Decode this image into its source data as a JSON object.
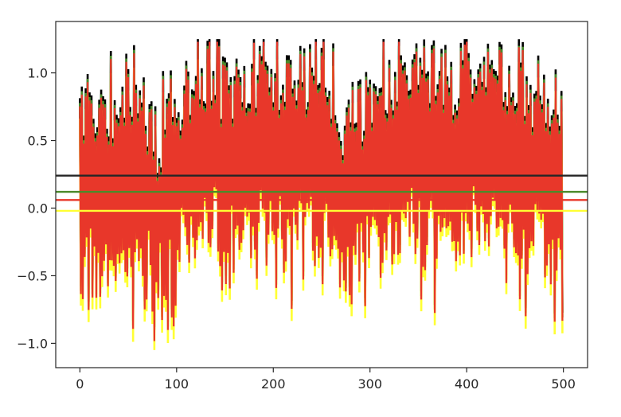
{
  "chart_data": {
    "type": "line",
    "title": "",
    "xlabel": "",
    "ylabel": "",
    "xlim": [
      -25,
      525
    ],
    "ylim": [
      -1.18,
      1.38
    ],
    "grid": false,
    "legend": "none",
    "x_ticks": [
      {
        "value": 0,
        "label": "0"
      },
      {
        "value": 100,
        "label": "100"
      },
      {
        "value": 200,
        "label": "200"
      },
      {
        "value": 300,
        "label": "300"
      },
      {
        "value": 400,
        "label": "400"
      },
      {
        "value": 500,
        "label": "500"
      }
    ],
    "y_ticks": [
      {
        "value": -1.0,
        "label": "−1.0"
      },
      {
        "value": -0.5,
        "label": "−0.5"
      },
      {
        "value": 0.0,
        "label": "0.0"
      },
      {
        "value": 0.5,
        "label": "0.5"
      },
      {
        "value": 1.0,
        "label": "1.0"
      }
    ],
    "n_points": 500,
    "series": [
      {
        "color": "#000000",
        "envelope": {
          "max_high": 1.25,
          "min_low": -0.88,
          "shift": 0.06
        }
      },
      {
        "color": "#4a8a2a",
        "envelope": {
          "max_high": 1.2,
          "min_low": -0.9,
          "shift": 0.025
        }
      },
      {
        "color": "#ffff33",
        "envelope": {
          "max_high": 1.1,
          "min_low": -1.05,
          "shift": -0.06
        }
      },
      {
        "color": "#e8372a",
        "envelope": {
          "max_high": 1.23,
          "min_low": -1.0,
          "shift": 0.0
        }
      }
    ],
    "reference_lines": [
      {
        "color": "#ffff33",
        "y": -0.02
      },
      {
        "color": "#e8372a",
        "y": 0.06
      },
      {
        "color": "#4a8a2a",
        "y": 0.12
      },
      {
        "color": "#262626",
        "y": 0.24
      }
    ]
  }
}
